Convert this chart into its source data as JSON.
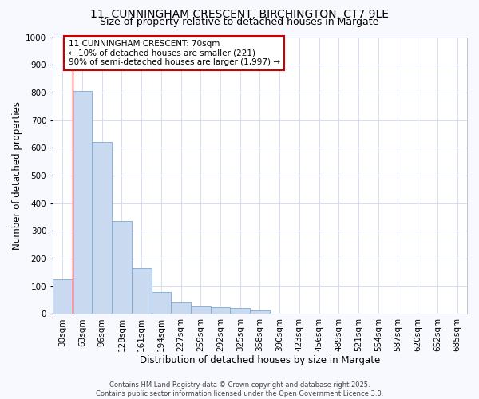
{
  "title_line1": "11, CUNNINGHAM CRESCENT, BIRCHINGTON, CT7 9LE",
  "title_line2": "Size of property relative to detached houses in Margate",
  "xlabel": "Distribution of detached houses by size in Margate",
  "ylabel": "Number of detached properties",
  "categories": [
    "30sqm",
    "63sqm",
    "96sqm",
    "128sqm",
    "161sqm",
    "194sqm",
    "227sqm",
    "259sqm",
    "292sqm",
    "325sqm",
    "358sqm",
    "390sqm",
    "423sqm",
    "456sqm",
    "489sqm",
    "521sqm",
    "554sqm",
    "587sqm",
    "620sqm",
    "652sqm",
    "685sqm"
  ],
  "values": [
    125,
    805,
    620,
    335,
    165,
    80,
    40,
    28,
    25,
    20,
    13,
    0,
    0,
    0,
    0,
    0,
    0,
    0,
    0,
    0,
    0
  ],
  "bar_color": "#c8d9f0",
  "bar_edge_color": "#7aaad4",
  "grid_color": "#d4dff0",
  "background_color": "#ffffff",
  "figure_background": "#f8f8ff",
  "vline_x": 0.5,
  "vline_color": "#cc0000",
  "annotation_text": "11 CUNNINGHAM CRESCENT: 70sqm\n← 10% of detached houses are smaller (221)\n90% of semi-detached houses are larger (1,997) →",
  "annotation_box_facecolor": "#ffffff",
  "annotation_box_edge": "#cc0000",
  "ylim": [
    0,
    1000
  ],
  "yticks": [
    0,
    100,
    200,
    300,
    400,
    500,
    600,
    700,
    800,
    900,
    1000
  ],
  "footnote": "Contains HM Land Registry data © Crown copyright and database right 2025.\nContains public sector information licensed under the Open Government Licence 3.0.",
  "title_fontsize": 10,
  "subtitle_fontsize": 9,
  "axis_label_fontsize": 8.5,
  "tick_fontsize": 7.5,
  "annotation_fontsize": 7.5,
  "footnote_fontsize": 6
}
